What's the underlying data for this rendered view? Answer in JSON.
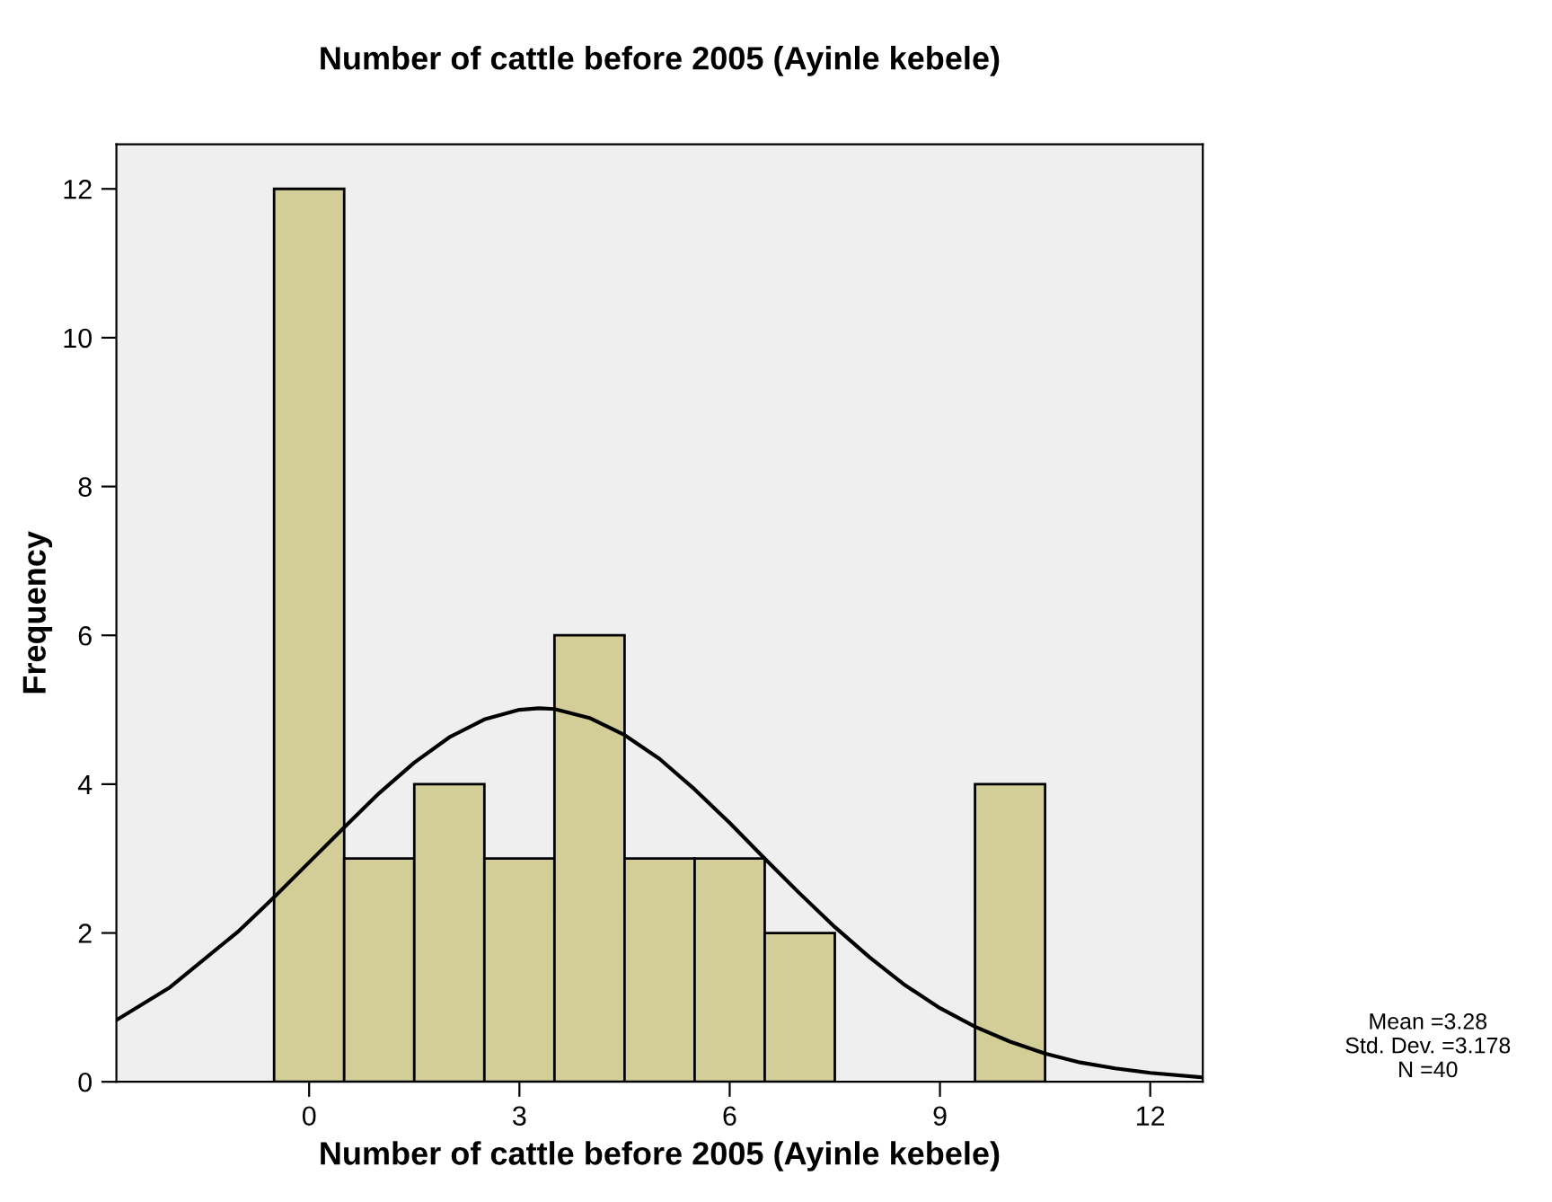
{
  "chart_data": {
    "type": "histogram",
    "title": "Number of cattle before 2005 (Ayinle kebele)",
    "xlabel": "Number of cattle before 2005 (Ayinle kebele)",
    "ylabel": "Frequency",
    "bins": [
      -0.5,
      0.5,
      1.5,
      2.5,
      3.5,
      4.5,
      5.5,
      6.5,
      7.5,
      8.5,
      9.5,
      10.5
    ],
    "values": [
      12,
      3,
      4,
      3,
      6,
      3,
      3,
      2,
      0,
      0,
      4
    ],
    "color": "#d3ce97",
    "series": [
      {
        "type": "line",
        "color": "#000000",
        "x": [
          -2.75,
          -2,
          -1,
          -0.5,
          0,
          0.5,
          1,
          1.5,
          2,
          2.5,
          3,
          3.28,
          3.5,
          4,
          4.5,
          5,
          5.5,
          6,
          6.5,
          7,
          7.5,
          8,
          8.5,
          9,
          9.5,
          10,
          10.5,
          11,
          11.5,
          12,
          12.75
        ],
        "values": [
          0.83,
          1.26,
          2.03,
          2.48,
          2.95,
          3.42,
          3.88,
          4.29,
          4.63,
          4.87,
          5.0,
          5.02,
          5.01,
          4.89,
          4.66,
          4.34,
          3.93,
          3.48,
          3.0,
          2.53,
          2.08,
          1.67,
          1.3,
          0.99,
          0.74,
          0.54,
          0.38,
          0.26,
          0.18,
          0.12,
          0.06
        ]
      }
    ],
    "xlim": [
      -2.75,
      12.75
    ],
    "xticks": [
      0,
      3,
      6,
      9,
      12
    ],
    "ylim": [
      0,
      12.6
    ],
    "yticks": [
      0,
      2,
      4,
      6,
      8,
      10,
      12
    ],
    "grid": false,
    "legend": false,
    "annotations": [
      "Mean =3.28",
      "Std. Dev. =3.178",
      "N =40"
    ]
  }
}
